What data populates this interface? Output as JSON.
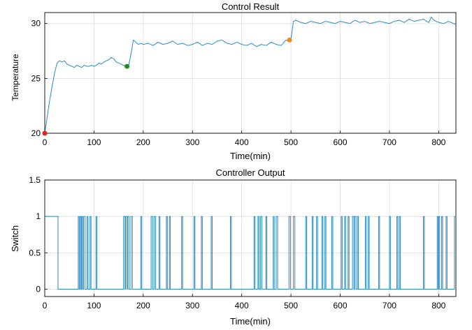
{
  "chart_data": [
    {
      "type": "line",
      "title": "Control Result",
      "xlabel": "Time(min)",
      "ylabel": "Temperature",
      "xlim": [
        0,
        835
      ],
      "ylim": [
        20,
        31
      ],
      "xticks": [
        0,
        100,
        200,
        300,
        400,
        500,
        600,
        700,
        800
      ],
      "yticks": [
        20,
        25,
        30
      ],
      "grid": true,
      "color": "#2a8cc4",
      "series": [
        {
          "x": [
            0,
            5,
            10,
            15,
            20,
            25,
            30,
            35,
            40,
            45,
            50,
            55,
            60,
            65,
            70,
            75,
            80,
            85,
            90,
            95,
            100,
            105,
            110,
            115,
            120,
            125,
            130,
            135,
            140,
            145,
            150,
            155,
            160,
            165,
            170,
            175,
            180,
            185,
            190,
            195,
            200,
            210,
            220,
            230,
            240,
            250,
            260,
            270,
            280,
            290,
            300,
            310,
            320,
            330,
            340,
            350,
            360,
            370,
            380,
            390,
            400,
            410,
            420,
            430,
            440,
            450,
            460,
            470,
            480,
            490,
            495,
            500,
            505,
            510,
            520,
            530,
            540,
            550,
            560,
            570,
            580,
            590,
            600,
            610,
            620,
            630,
            640,
            650,
            660,
            670,
            680,
            690,
            700,
            710,
            720,
            730,
            740,
            750,
            760,
            770,
            775,
            780,
            785,
            790,
            800,
            810,
            820,
            830,
            835
          ],
          "y": [
            20.0,
            21.5,
            23.0,
            24.3,
            25.5,
            26.4,
            26.6,
            26.5,
            26.6,
            26.3,
            26.2,
            26.1,
            26.0,
            26.2,
            26.1,
            26.0,
            26.2,
            26.1,
            26.1,
            26.2,
            26.1,
            26.2,
            26.4,
            26.3,
            26.5,
            26.6,
            26.7,
            26.9,
            26.8,
            26.5,
            26.4,
            26.3,
            26.2,
            26.1,
            26.1,
            27.2,
            28.5,
            28.3,
            28.1,
            28.2,
            28.1,
            28.2,
            28.0,
            28.3,
            28.1,
            28.2,
            28.4,
            28.1,
            28.2,
            28.0,
            28.1,
            28.3,
            28.0,
            28.2,
            28.1,
            28.4,
            28.5,
            28.2,
            28.1,
            28.3,
            28.1,
            28.0,
            28.2,
            27.9,
            28.1,
            28.0,
            28.3,
            28.1,
            28.0,
            28.5,
            28.4,
            28.6,
            30.2,
            30.3,
            30.1,
            30.0,
            30.2,
            30.1,
            30.0,
            30.2,
            30.1,
            30.0,
            30.2,
            30.1,
            30.0,
            30.3,
            30.1,
            30.2,
            30.0,
            30.1,
            30.2,
            30.1,
            30.0,
            30.2,
            30.3,
            30.1,
            30.4,
            30.2,
            30.3,
            30.4,
            30.2,
            30.1,
            30.6,
            30.3,
            30.1,
            30.0,
            30.2,
            30.0,
            29.9
          ]
        }
      ],
      "markers": [
        {
          "x": 0,
          "y": 20.0,
          "color": "#e8231c"
        },
        {
          "x": 167,
          "y": 26.1,
          "color": "#1f8a1f"
        },
        {
          "x": 497,
          "y": 28.5,
          "color": "#f08a1e"
        }
      ]
    },
    {
      "type": "line",
      "title": "Controller Output",
      "xlabel": "Time(min)",
      "ylabel": "Switch",
      "xlim": [
        0,
        835
      ],
      "ylim": [
        -0.1,
        1.5
      ],
      "xticks": [
        0,
        100,
        200,
        300,
        400,
        500,
        600,
        700,
        800
      ],
      "yticks": [
        0,
        0.5,
        1,
        1.5
      ],
      "ytick_labels": [
        "0",
        "0.5",
        "1",
        "1.5"
      ],
      "grid": true,
      "color": "#2a8cc4",
      "step": true,
      "series": [
        {
          "x": [
            0,
            27,
            68,
            70,
            72,
            74,
            75,
            77,
            79,
            82,
            86,
            88,
            92,
            94,
            104,
            106,
            160,
            163,
            164,
            167,
            168,
            171,
            175,
            178,
            195,
            197,
            216,
            219,
            222,
            225,
            232,
            234,
            247,
            249,
            253,
            255,
            278,
            280,
            303,
            305,
            318,
            320,
            338,
            340,
            377,
            379,
            425,
            427,
            433,
            435,
            438,
            441,
            449,
            451,
            464,
            466,
            470,
            473,
            496,
            499,
            505,
            508,
            530,
            532,
            543,
            545,
            552,
            554,
            563,
            565,
            569,
            571,
            583,
            585,
            602,
            604,
            609,
            611,
            616,
            618,
            625,
            628,
            629,
            632,
            635,
            637,
            651,
            653,
            657,
            659,
            678,
            680,
            700,
            702,
            715,
            717,
            720,
            722,
            769,
            771,
            797,
            799,
            800,
            802,
            806,
            808,
            815,
            817,
            832,
            835
          ],
          "y": [
            1,
            0,
            1,
            0,
            1,
            0,
            1,
            0,
            1,
            0,
            1,
            0,
            1,
            0,
            1,
            0,
            1,
            0,
            1,
            0,
            1,
            0,
            1,
            0,
            1,
            0,
            1,
            0,
            1,
            0,
            1,
            0,
            1,
            0,
            1,
            0,
            1,
            0,
            1,
            0,
            1,
            0,
            1,
            0,
            1,
            0,
            1,
            0,
            1,
            0,
            1,
            0,
            1,
            0,
            1,
            0,
            1,
            0,
            1,
            0,
            1,
            0,
            1,
            0,
            1,
            0,
            1,
            0,
            1,
            0,
            1,
            0,
            1,
            0,
            1,
            0,
            1,
            0,
            1,
            0,
            1,
            0,
            1,
            0,
            1,
            0,
            1,
            0,
            1,
            0,
            1,
            0,
            1,
            0,
            1,
            0,
            1,
            0,
            1,
            0,
            1,
            0,
            1,
            0,
            1,
            0,
            1,
            0,
            1,
            1
          ]
        }
      ]
    }
  ]
}
